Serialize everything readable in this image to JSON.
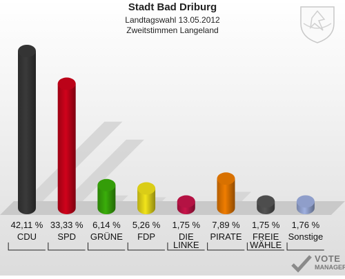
{
  "title": "Stadt Bad Driburg",
  "subtitle1": "Landtagswahl 13.05.2012",
  "subtitle2": "Zweitstimmen Langeland",
  "logo": {
    "line1": "VOTE",
    "line2": "MANAGER"
  },
  "chart_data": {
    "type": "bar",
    "title": "Stadt Bad Driburg",
    "categories": [
      "CDU",
      "SPD",
      "GRÜNE",
      "FDP",
      "DIE LINKE",
      "PIRATE",
      "FREIE WÄHLE",
      "Sonstige"
    ],
    "category_lines": [
      [
        "CDU"
      ],
      [
        "SPD"
      ],
      [
        "GRÜNE"
      ],
      [
        "FDP"
      ],
      [
        "DIE",
        "LINKE"
      ],
      [
        "PIRATE"
      ],
      [
        "FREIE",
        "WÄHLE"
      ],
      [
        "Sonstige"
      ]
    ],
    "values": [
      42.11,
      33.33,
      6.14,
      5.26,
      1.75,
      7.89,
      1.75,
      1.76
    ],
    "labels": [
      "42,11 %",
      "33,33 %",
      "6,14 %",
      "5,26 %",
      "1,75 %",
      "7,89 %",
      "1,75 %",
      "1,76 %"
    ],
    "colors": [
      "#3a3a3a",
      "#d0021b",
      "#3aae0a",
      "#f2e41a",
      "#c8144a",
      "#f07d00",
      "#555555",
      "#9fb0e0"
    ],
    "ylim": [
      0,
      42.11
    ]
  }
}
